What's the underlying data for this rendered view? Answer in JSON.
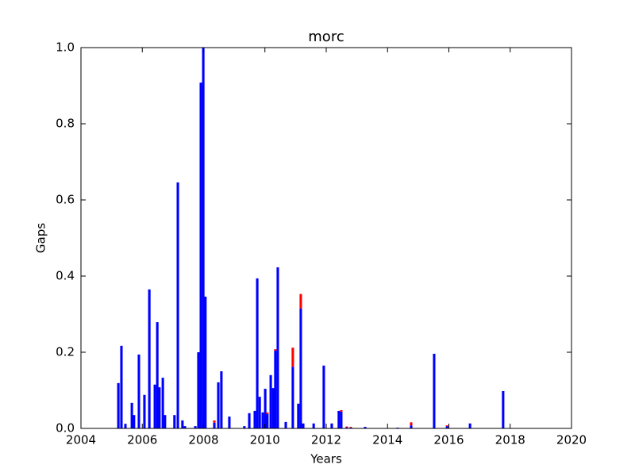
{
  "chart_data": {
    "type": "bar",
    "title": "morc",
    "xlabel": "Years",
    "ylabel": "Gaps",
    "x": [
      2005.22,
      2005.32,
      2005.45,
      2005.66,
      2005.73,
      2005.89,
      2006.07,
      2006.23,
      2006.41,
      2006.49,
      2006.56,
      2006.67,
      2006.74,
      2007.05,
      2007.16,
      2007.31,
      2007.39,
      2007.73,
      2007.83,
      2007.91,
      2007.99,
      2008.06,
      2008.35,
      2008.48,
      2008.58,
      2008.84,
      2009.33,
      2009.49,
      2009.67,
      2009.75,
      2009.83,
      2009.93,
      2010.01,
      2010.08,
      2010.19,
      2010.27,
      2010.34,
      2010.42,
      2010.68,
      2010.91,
      2011.09,
      2011.17,
      2011.25,
      2011.59,
      2011.92,
      2012.18,
      2012.41,
      2012.49,
      2012.67,
      2012.8,
      2013.27,
      2014.33,
      2014.77,
      2015.52,
      2015.94,
      2016.69,
      2017.77
    ],
    "series": [
      {
        "color": "#0000ff",
        "values": [
          0.119,
          0.217,
          0.012,
          0.067,
          0.035,
          0.194,
          0.088,
          0.365,
          0.115,
          0.279,
          0.108,
          0.133,
          0.035,
          0.035,
          0.646,
          0.021,
          0.006,
          0.006,
          0.2,
          0.908,
          1.0,
          0.346,
          0.015,
          0.121,
          0.15,
          0.031,
          0.006,
          0.04,
          0.046,
          0.394,
          0.083,
          0.042,
          0.104,
          0.038,
          0.14,
          0.106,
          0.204,
          0.423,
          0.017,
          0.162,
          0.065,
          0.315,
          0.013,
          0.013,
          0.165,
          0.013,
          0.046,
          0.044,
          0.003,
          0.002,
          0.004,
          0.002,
          0.008,
          0.196,
          0.006,
          0.013,
          0.098
        ]
      },
      {
        "color": "#ff0000",
        "values": [
          0,
          0,
          0,
          0,
          0,
          0,
          0,
          0,
          0,
          0,
          0,
          0,
          0,
          0,
          0,
          0,
          0,
          0,
          0,
          0,
          0,
          0,
          0.006,
          0,
          0,
          0,
          0,
          0,
          0,
          0,
          0,
          0,
          0,
          0.004,
          0,
          0,
          0.004,
          0,
          0,
          0.05,
          0,
          0.038,
          0,
          0,
          0,
          0,
          0,
          0.004,
          0.002,
          0.002,
          0,
          0,
          0.008,
          0,
          0.002,
          0,
          0
        ]
      }
    ],
    "bar_width": 0.08,
    "xlim": [
      2004,
      2020
    ],
    "xticks": [
      2004,
      2006,
      2008,
      2010,
      2012,
      2014,
      2016,
      2018,
      2020
    ],
    "ylim": [
      0,
      1
    ],
    "yticks": [
      {
        "value": 0,
        "label": "0.0"
      },
      0.2,
      0.4,
      0.6,
      0.8,
      {
        "value": 1,
        "label": "1.0"
      }
    ],
    "grid": false
  }
}
